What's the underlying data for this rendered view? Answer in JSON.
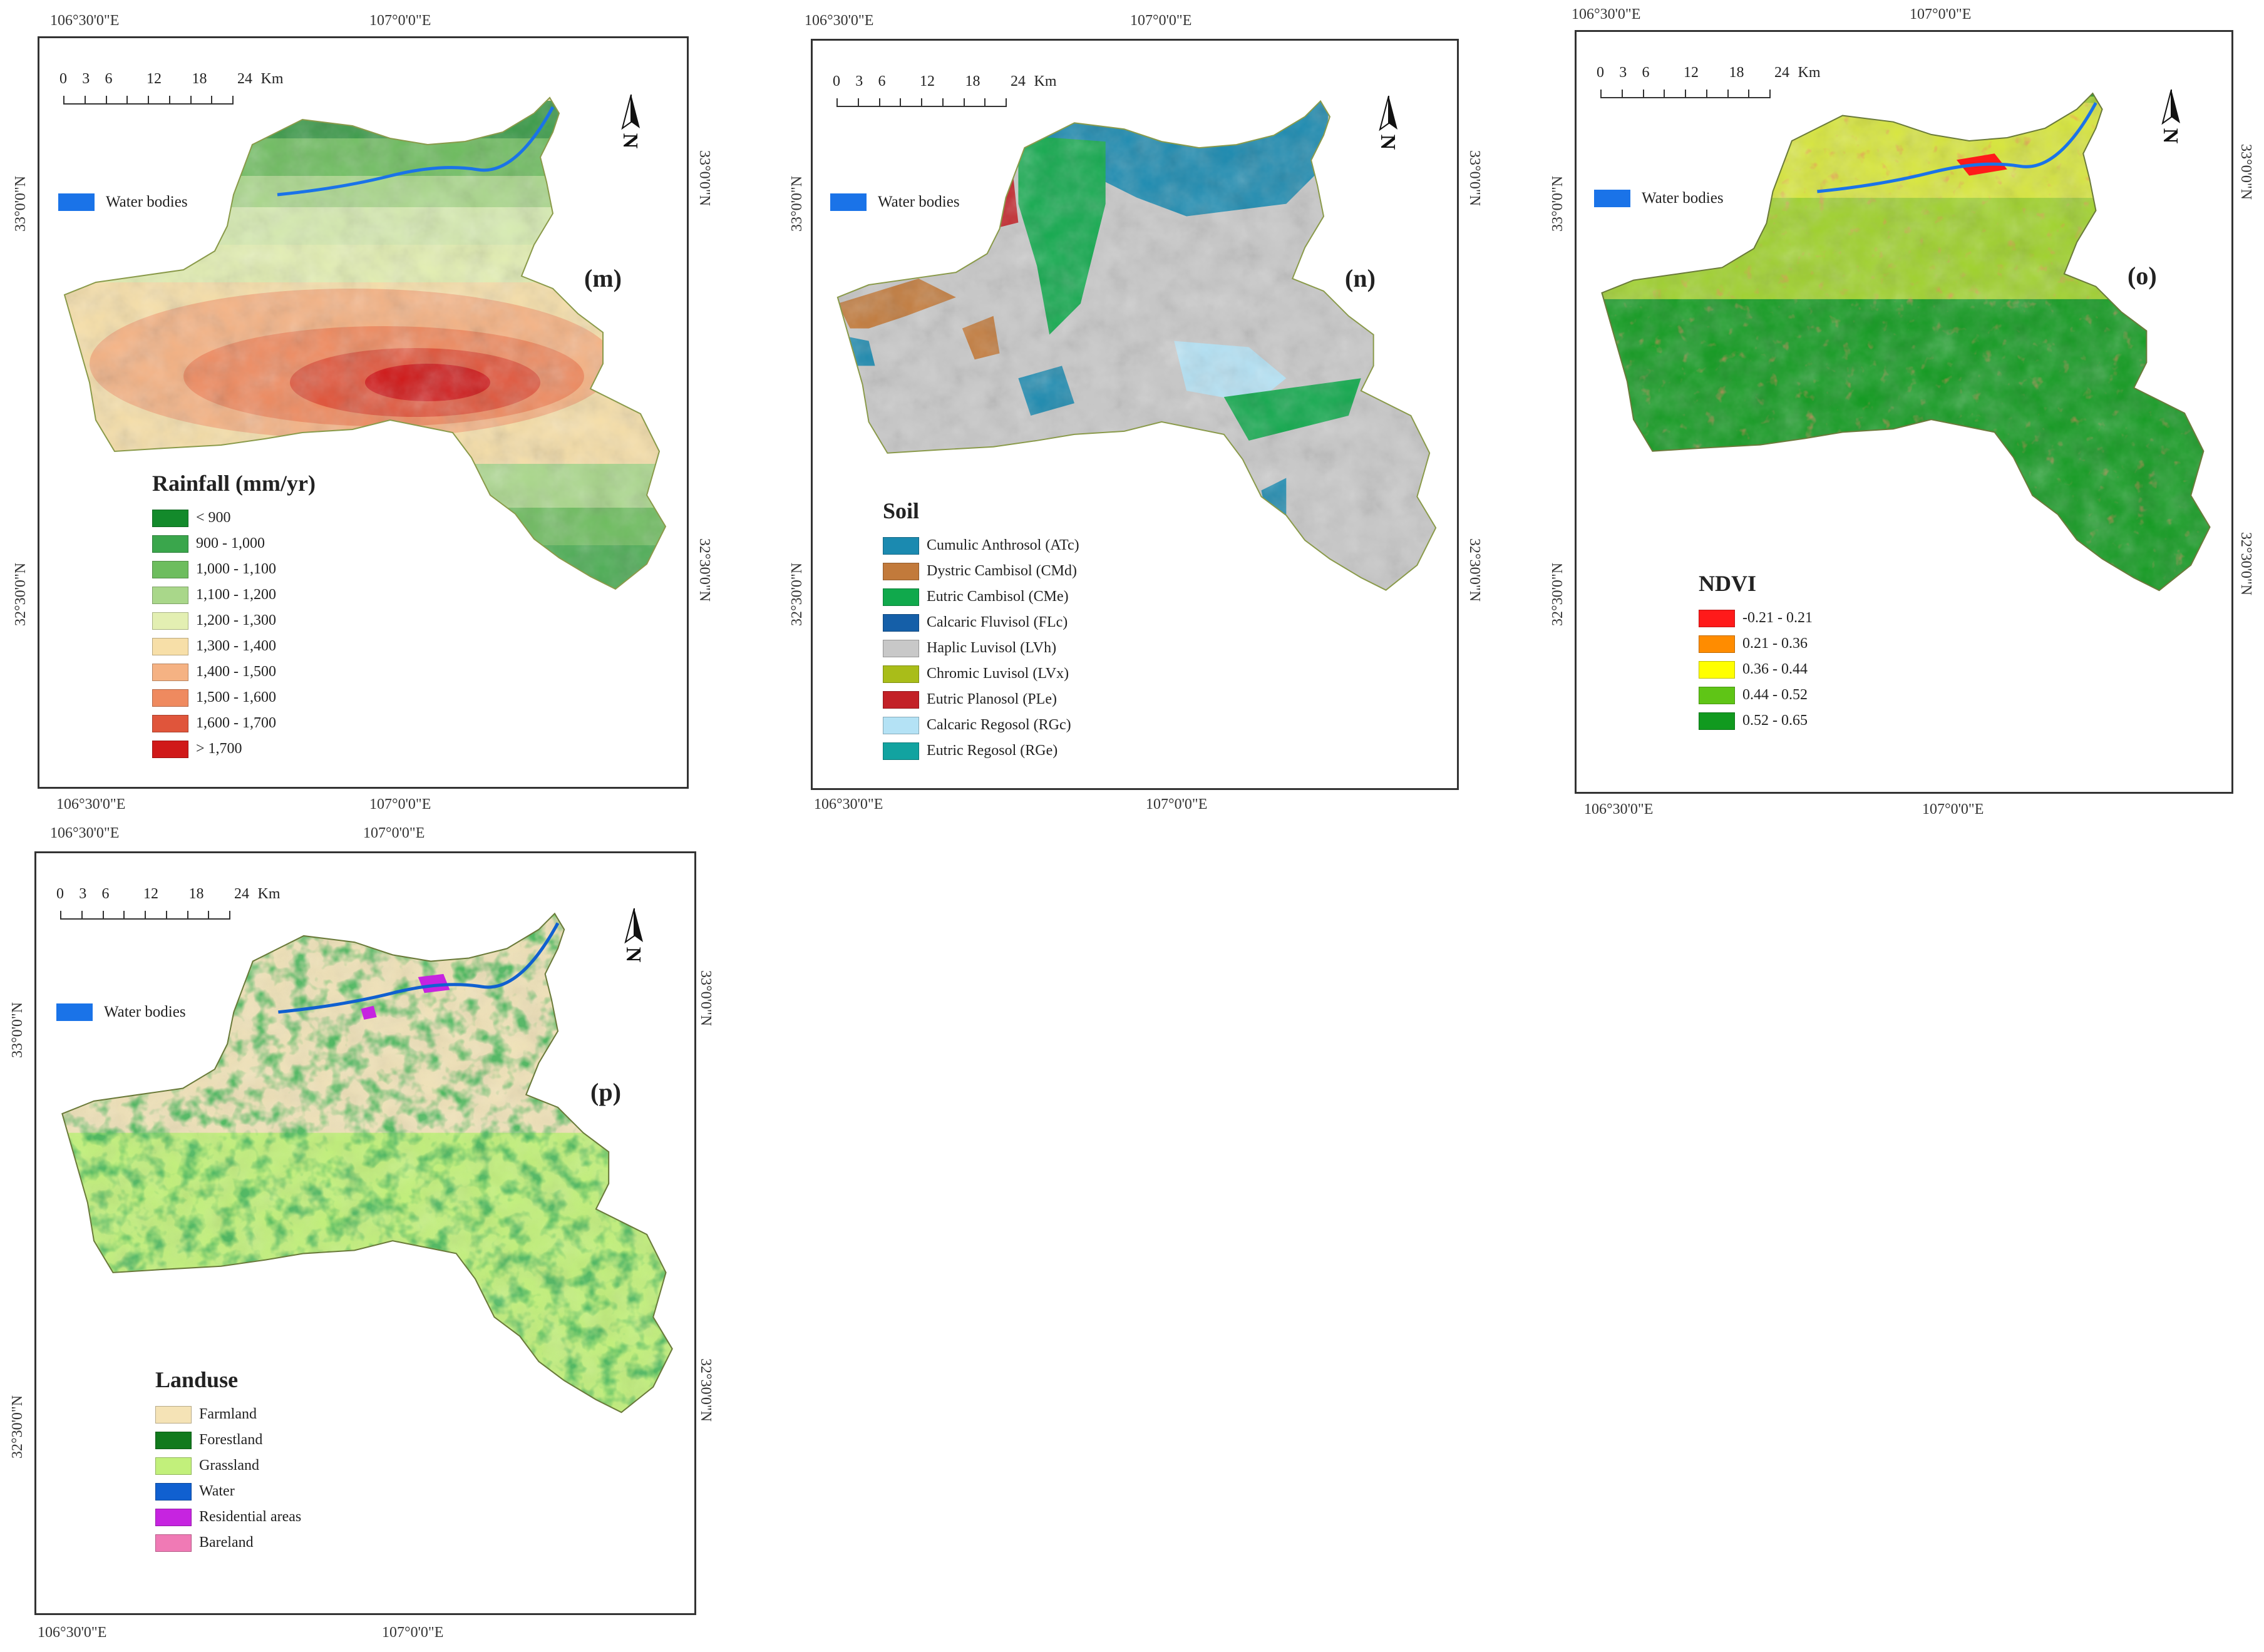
{
  "coords": {
    "lon_left": "106°30'0\"E",
    "lon_right": "107°0'0\"E",
    "lat_upper": "33°0'0\"N",
    "lat_lower": "32°30'0\"N"
  },
  "scale": {
    "ticks": [
      "0",
      "3",
      "6",
      "12",
      "18",
      "24"
    ],
    "unit": "Km"
  },
  "water_bodies_label": "Water bodies",
  "panels": {
    "m": {
      "label": "(m)",
      "legend_title": "Rainfall (mm/yr)",
      "items": [
        {
          "label": "< 900",
          "color": "#138a2b"
        },
        {
          "label": "900 - 1,000",
          "color": "#3aa64c"
        },
        {
          "label": "1,000 - 1,100",
          "color": "#6dbd5e"
        },
        {
          "label": "1,100 - 1,200",
          "color": "#a9d78a"
        },
        {
          "label": "1,200 - 1,300",
          "color": "#e3efb2"
        },
        {
          "label": "1,300 - 1,400",
          "color": "#f7dfa8"
        },
        {
          "label": "1,400 - 1,500",
          "color": "#f5b283"
        },
        {
          "label": "1,500 - 1,600",
          "color": "#ef8a5f"
        },
        {
          "label": "1,600 - 1,700",
          "color": "#e0553b"
        },
        {
          "label": "> 1,700",
          "color": "#d01919"
        }
      ]
    },
    "n": {
      "label": "(n)",
      "legend_title": "Soil",
      "items": [
        {
          "label": "Cumulic Anthrosol (ATc)",
          "color": "#1b8ab0"
        },
        {
          "label": "Dystric Cambisol (CMd)",
          "color": "#c27a3b"
        },
        {
          "label": "Eutric Cambisol (CMe)",
          "color": "#10a94c"
        },
        {
          "label": "Calcaric Fluvisol (FLc)",
          "color": "#155fa8"
        },
        {
          "label": "Haplic Luvisol (LVh)",
          "color": "#c8c8c8"
        },
        {
          "label": "Chromic Luvisol (LVx)",
          "color": "#a9bd19"
        },
        {
          "label": "Eutric Planosol (PLe)",
          "color": "#c32127"
        },
        {
          "label": "Calcaric Regosol (RGc)",
          "color": "#b4e2f5"
        },
        {
          "label": "Eutric Regosol (RGe)",
          "color": "#12a3a0"
        }
      ]
    },
    "o": {
      "label": "(o)",
      "legend_title": "NDVI",
      "items": [
        {
          "label": "-0.21 - 0.21",
          "color": "#ff1a1a"
        },
        {
          "label": "0.21 - 0.36",
          "color": "#ff8c00"
        },
        {
          "label": "0.36 - 0.44",
          "color": "#ffff00"
        },
        {
          "label": "0.44 - 0.52",
          "color": "#5fc516"
        },
        {
          "label": "0.52 - 0.65",
          "color": "#119a1f"
        }
      ]
    },
    "p": {
      "label": "(p)",
      "legend_title": "Landuse",
      "items": [
        {
          "label": "Farmland",
          "color": "#f5e3b6"
        },
        {
          "label": "Forestland",
          "color": "#117a1d"
        },
        {
          "label": "Grassland",
          "color": "#c2f07b"
        },
        {
          "label": "Water",
          "color": "#1060d0"
        },
        {
          "label": "Residential areas",
          "color": "#c624e0"
        },
        {
          "label": "Bareland",
          "color": "#f07ab5"
        }
      ]
    }
  }
}
